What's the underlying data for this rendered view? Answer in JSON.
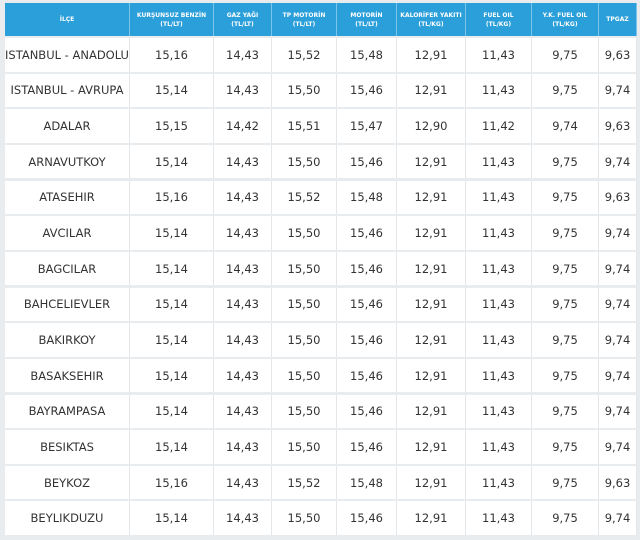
{
  "table": {
    "header": [
      {
        "name": "İLÇE"
      },
      {
        "name": "KURŞUNSUZ BENZİN",
        "unit": "(TL/LT)"
      },
      {
        "name": "GAZ YAĞI",
        "unit": "(TL/LT)"
      },
      {
        "name": "TP MOTORİN",
        "unit": "(TL/LT)"
      },
      {
        "name": "MOTORİN",
        "unit": "(TL/LT)"
      },
      {
        "name": "KALORİFER YAKITI",
        "unit": "(TL/KG)"
      },
      {
        "name": "FUEL OIL",
        "unit": "(TL/KG)"
      },
      {
        "name": "Y.K. FUEL OIL",
        "unit": "(TL/KG)"
      },
      {
        "name": "TPGAZ"
      }
    ],
    "rows": [
      [
        "ISTANBUL - ANADOLU",
        "15,16",
        "14,43",
        "15,52",
        "15,48",
        "12,91",
        "11,43",
        "9,75",
        "9,63"
      ],
      [
        "ISTANBUL - AVRUPA",
        "15,14",
        "14,43",
        "15,50",
        "15,46",
        "12,91",
        "11,43",
        "9,75",
        "9,74"
      ],
      [
        "ADALAR",
        "15,15",
        "14,42",
        "15,51",
        "15,47",
        "12,90",
        "11,42",
        "9,74",
        "9,63"
      ],
      [
        "ARNAVUTKOY",
        "15,14",
        "14,43",
        "15,50",
        "15,46",
        "12,91",
        "11,43",
        "9,75",
        "9,74"
      ],
      [
        "ATASEHIR",
        "15,16",
        "14,43",
        "15,52",
        "15,48",
        "12,91",
        "11,43",
        "9,75",
        "9,63"
      ],
      [
        "AVCILAR",
        "15,14",
        "14,43",
        "15,50",
        "15,46",
        "12,91",
        "11,43",
        "9,75",
        "9,74"
      ],
      [
        "BAGCILAR",
        "15,14",
        "14,43",
        "15,50",
        "15,46",
        "12,91",
        "11,43",
        "9,75",
        "9,74"
      ],
      [
        "BAHCELIEVLER",
        "15,14",
        "14,43",
        "15,50",
        "15,46",
        "12,91",
        "11,43",
        "9,75",
        "9,74"
      ],
      [
        "BAKIRKOY",
        "15,14",
        "14,43",
        "15,50",
        "15,46",
        "12,91",
        "11,43",
        "9,75",
        "9,74"
      ],
      [
        "BASAKSEHIR",
        "15,14",
        "14,43",
        "15,50",
        "15,46",
        "12,91",
        "11,43",
        "9,75",
        "9,74"
      ],
      [
        "BAYRAMPASA",
        "15,14",
        "14,43",
        "15,50",
        "15,46",
        "12,91",
        "11,43",
        "9,75",
        "9,74"
      ],
      [
        "BESIKTAS",
        "15,14",
        "14,43",
        "15,50",
        "15,46",
        "12,91",
        "11,43",
        "9,75",
        "9,74"
      ],
      [
        "BEYKOZ",
        "15,16",
        "14,43",
        "15,52",
        "15,48",
        "12,91",
        "11,43",
        "9,75",
        "9,63"
      ],
      [
        "BEYLIKDUZU",
        "15,14",
        "14,43",
        "15,50",
        "15,46",
        "12,91",
        "11,43",
        "9,75",
        "9,74"
      ]
    ]
  }
}
